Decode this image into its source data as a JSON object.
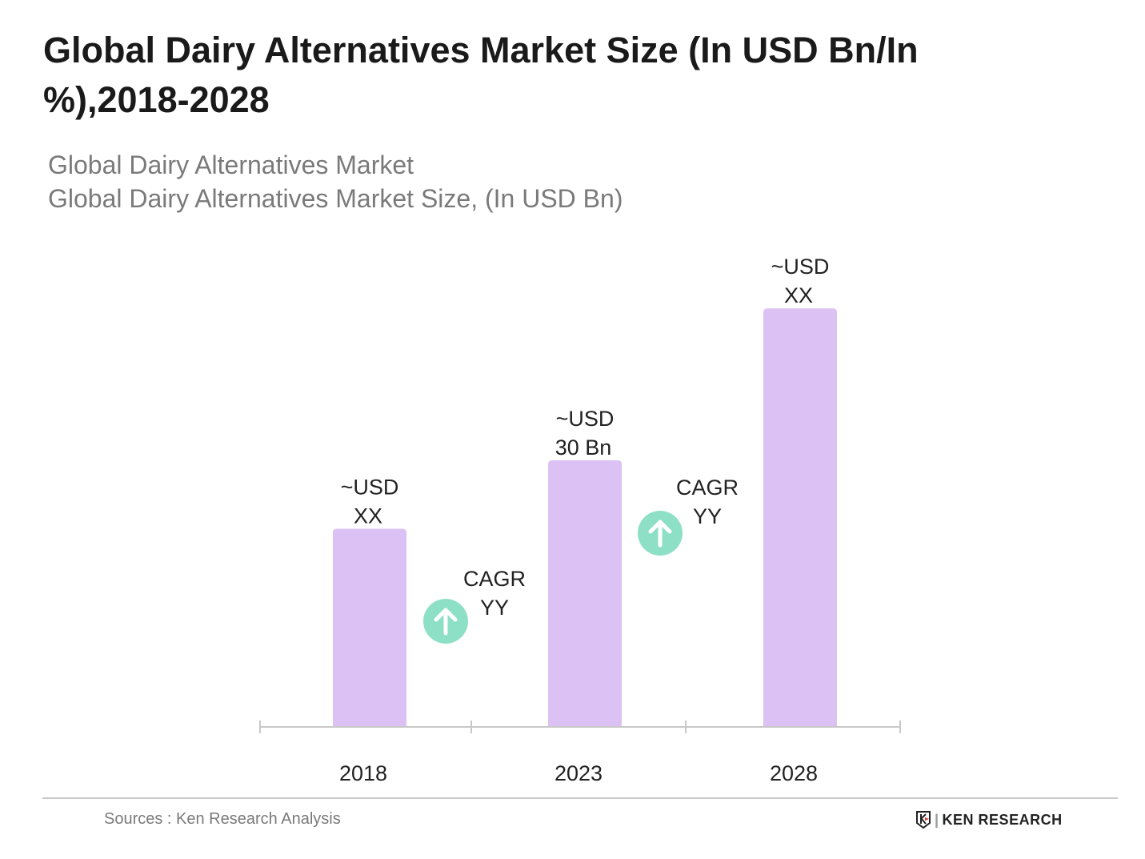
{
  "title": "Global Dairy Alternatives Market Size (In USD Bn/In %),2018-2028",
  "subtitle_1": "Global Dairy Alternatives Market",
  "subtitle_2": "Global Dairy Alternatives Market Size, (In USD Bn)",
  "source": "Sources : Ken Research Analysis",
  "logo_text": "KEN RESEARCH",
  "colors": {
    "bar": "#dcc1f5",
    "cagr_icon": "#8de0c6",
    "axis": "#c8c8c8"
  },
  "chart_data": {
    "type": "bar",
    "categories": [
      "2018",
      "2023",
      "2028"
    ],
    "values": [
      22.3,
      30,
      47.1
    ],
    "data_labels": [
      [
        "~USD",
        "XX"
      ],
      [
        "~USD",
        "30 Bn"
      ],
      [
        "~USD",
        "XX"
      ]
    ],
    "annotations": [
      {
        "between": [
          "2018",
          "2023"
        ],
        "lines": [
          "CAGR",
          "YY"
        ],
        "icon": "arrow-up-circle-icon"
      },
      {
        "between": [
          "2023",
          "2028"
        ],
        "lines": [
          "CAGR",
          "YY"
        ],
        "icon": "arrow-up-circle-icon"
      }
    ],
    "ylim": [
      0,
      50
    ],
    "grid": false,
    "y_axis_shown": false
  }
}
